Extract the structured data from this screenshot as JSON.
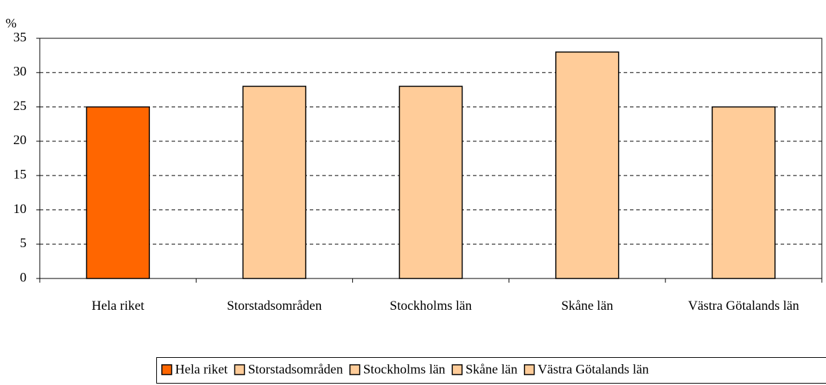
{
  "chart_data": {
    "type": "bar",
    "y_label": "%",
    "categories": [
      "Hela riket",
      "Storstadsområden",
      "Stockholms län",
      "Skåne län",
      "Västra Götalands län"
    ],
    "values": [
      25,
      28,
      28,
      33,
      25
    ],
    "colors": [
      "#ff6600",
      "#ffcc99",
      "#ffcc99",
      "#ffcc99",
      "#ffcc99"
    ],
    "ylim": [
      0,
      35
    ],
    "yticks": [
      0,
      5,
      10,
      15,
      20,
      25,
      30,
      35
    ],
    "grid": true,
    "legend": "bottom"
  }
}
